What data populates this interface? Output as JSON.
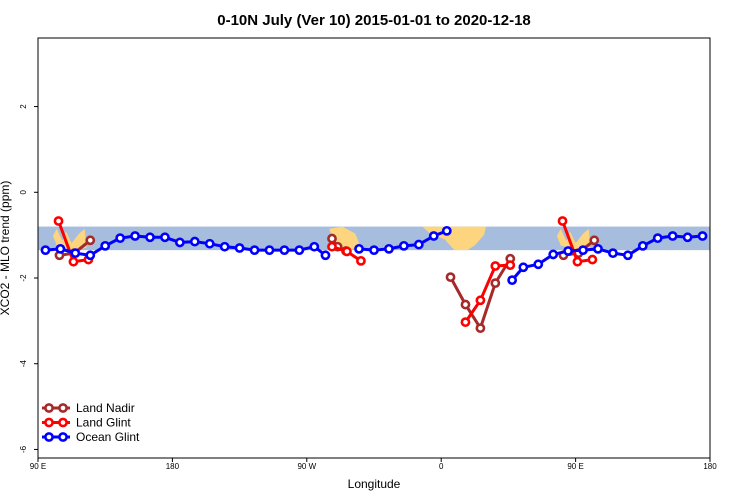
{
  "chart_data": {
    "type": "line",
    "title": "0-10N July (Ver 10)   2015-01-01 to 2020-12-18",
    "xlabel": "Longitude",
    "ylabel": "XCO2 - MLO trend (ppm)",
    "xlim": [
      90,
      450
    ],
    "ylim": [
      -6.2,
      3.6
    ],
    "x_ticks": [
      {
        "value": 90,
        "label": "90 E"
      },
      {
        "value": 162,
        "label": "180"
      },
      {
        "value": 234,
        "label": "90 W"
      },
      {
        "value": 306,
        "label": "0"
      },
      {
        "value": 378,
        "label": "90 E"
      },
      {
        "value": 450,
        "label": "180"
      }
    ],
    "y_ticks": [
      {
        "value": 2,
        "label": "2"
      },
      {
        "value": 0,
        "label": "0"
      },
      {
        "value": -2,
        "label": "-2"
      },
      {
        "value": -4,
        "label": "-4"
      },
      {
        "value": -6,
        "label": "-6"
      }
    ],
    "grid": false,
    "legend_position": "bottom-left",
    "background_band": {
      "y_top": -0.8,
      "y_bottom": -1.35,
      "ocean_color": "#a7bddd",
      "land_color": "#fdd57e"
    },
    "series": [
      {
        "name": "Land Nadir",
        "color": "#a52a2a",
        "segments": [
          [
            [
              101.5,
              -1.47
            ],
            [
              109.5,
              -1.42
            ],
            [
              118,
              -1.12
            ]
          ],
          [
            [
              247.5,
              -1.08
            ],
            [
              250.5,
              -1.27
            ],
            [
              255,
              -1.37
            ]
          ],
          [
            [
              311,
              -1.98
            ],
            [
              319,
              -2.62
            ],
            [
              327,
              -3.17
            ],
            [
              335,
              -2.12
            ],
            [
              343,
              -1.55
            ]
          ],
          [
            [
              371.5,
              -1.47
            ],
            [
              379.5,
              -1.42
            ],
            [
              388,
              -1.12
            ]
          ]
        ]
      },
      {
        "name": "Land Glint",
        "color": "#ff0000",
        "segments": [
          [
            [
              101,
              -0.67
            ],
            [
              109,
              -1.62
            ],
            [
              117,
              -1.57
            ]
          ],
          [
            [
              247.5,
              -1.27
            ],
            [
              255.5,
              -1.38
            ],
            [
              263,
              -1.6
            ]
          ],
          [
            [
              319,
              -3.03
            ],
            [
              327,
              -2.52
            ],
            [
              335,
              -1.72
            ],
            [
              343,
              -1.7
            ]
          ],
          [
            [
              371,
              -0.67
            ],
            [
              379,
              -1.62
            ],
            [
              387,
              -1.57
            ]
          ]
        ]
      },
      {
        "name": "Ocean Glint",
        "color": "#0000ff",
        "segments": [
          [
            [
              94,
              -1.35
            ],
            [
              102,
              -1.32
            ],
            [
              110,
              -1.42
            ],
            [
              118,
              -1.47
            ],
            [
              126,
              -1.25
            ],
            [
              134,
              -1.07
            ],
            [
              142,
              -1.02
            ],
            [
              150,
              -1.05
            ],
            [
              158,
              -1.05
            ],
            [
              166,
              -1.17
            ],
            [
              174,
              -1.15
            ],
            [
              182,
              -1.2
            ],
            [
              190,
              -1.27
            ],
            [
              198,
              -1.3
            ],
            [
              206,
              -1.35
            ],
            [
              214,
              -1.35
            ],
            [
              222,
              -1.35
            ],
            [
              230,
              -1.35
            ],
            [
              238,
              -1.27
            ],
            [
              244,
              -1.47
            ]
          ],
          [
            [
              262,
              -1.32
            ],
            [
              270,
              -1.35
            ],
            [
              278,
              -1.32
            ],
            [
              286,
              -1.25
            ],
            [
              294,
              -1.22
            ],
            [
              302,
              -1.02
            ],
            [
              309,
              -0.9
            ]
          ],
          [
            [
              344,
              -2.05
            ],
            [
              350,
              -1.75
            ],
            [
              358,
              -1.68
            ],
            [
              366,
              -1.45
            ],
            [
              374,
              -1.37
            ],
            [
              382,
              -1.35
            ],
            [
              390,
              -1.32
            ],
            [
              398,
              -1.42
            ],
            [
              406,
              -1.47
            ],
            [
              414,
              -1.25
            ],
            [
              422,
              -1.07
            ],
            [
              430,
              -1.02
            ],
            [
              438,
              -1.05
            ],
            [
              446,
              -1.02
            ]
          ]
        ]
      }
    ]
  }
}
